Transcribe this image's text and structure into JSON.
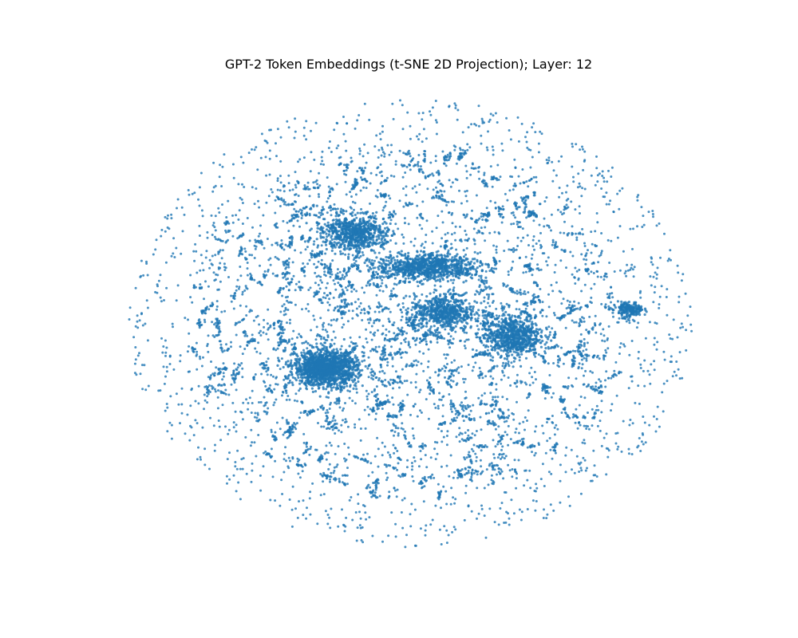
{
  "chart_data": {
    "type": "scatter",
    "title": "GPT-2 Token Embeddings (t-SNE 2D Projection); Layer: 12",
    "xlabel": "",
    "ylabel": "",
    "axes_visible": false,
    "grid": false,
    "legend": "none",
    "x_range": [
      -100,
      100
    ],
    "y_range": [
      -100,
      100
    ],
    "approx_point_count": 50257,
    "series": [
      {
        "color": "#1f77b4",
        "marker": "circle",
        "alpha": 0.8,
        "clusters": [
          {
            "center": [
              -30,
              -20
            ],
            "spread": [
              10,
              7
            ],
            "density": "very high",
            "share": 0.1
          },
          {
            "center": [
              -20,
              40
            ],
            "spread": [
              10,
              7
            ],
            "density": "high",
            "share": 0.045
          },
          {
            "center": [
              6,
              25
            ],
            "spread": [
              16,
              5
            ],
            "density": "high",
            "share": 0.06
          },
          {
            "center": [
              12,
              5
            ],
            "spread": [
              10,
              7
            ],
            "density": "medium",
            "share": 0.035
          },
          {
            "center": [
              36,
              -6
            ],
            "spread": [
              9,
              8
            ],
            "density": "high",
            "share": 0.05
          },
          {
            "center": [
              78,
              6
            ],
            "spread": [
              4,
              3
            ],
            "density": "high",
            "share": 0.012
          }
        ],
        "background_extent": {
          "x": [
            -100,
            100
          ],
          "y": [
            -100,
            100
          ]
        }
      }
    ]
  }
}
